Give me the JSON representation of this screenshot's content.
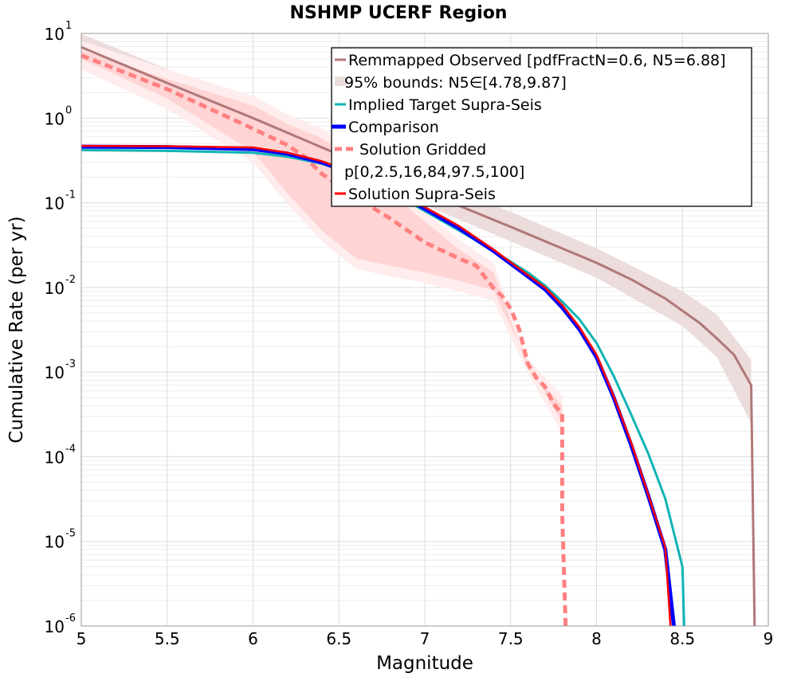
{
  "chart_data": {
    "type": "line",
    "title": "NSHMP UCERF Region",
    "xlabel": "Magnitude",
    "ylabel": "Cumulative Rate (per yr)",
    "xlim": [
      5,
      9
    ],
    "ylim": [
      1e-06,
      10
    ],
    "yscale": "log",
    "grid": true,
    "legend_position": "top-right",
    "x_ticks": [
      "5",
      "5.5",
      "6",
      "6.5",
      "7",
      "7.5",
      "8",
      "8.5",
      "9"
    ],
    "y_ticks": [
      {
        "base": "10",
        "exp": "-6"
      },
      {
        "base": "10",
        "exp": "-5"
      },
      {
        "base": "10",
        "exp": "-4"
      },
      {
        "base": "10",
        "exp": "-3"
      },
      {
        "base": "10",
        "exp": "-2"
      },
      {
        "base": "10",
        "exp": "-1"
      },
      {
        "base": "10",
        "exp": "0"
      },
      {
        "base": "10",
        "exp": "1"
      }
    ],
    "legend": [
      "Remmapped Observed [pdfFractN=0.6, N5=6.88]",
      "95% bounds: N5∈[4.78,9.87]",
      "Implied Target Supra-Seis",
      "Comparison",
      "Solution Gridded",
      "p[0,2.5,16,84,97.5,100]",
      "Solution Supra-Seis"
    ],
    "colors": {
      "observed": "#b07878",
      "observed_band": "#ecdcdc",
      "target": "#10b4b4",
      "comparison": "#0000ff",
      "gridded": "#ff8080",
      "gridded_band_outer": "#ffecec",
      "gridded_band_inner": "#ffd4d4",
      "supra": "#ff0000"
    },
    "series": [
      {
        "name": "Remmapped Observed [pdfFractN=0.6, N5=6.88]",
        "x": [
          5.0,
          5.5,
          6.0,
          6.5,
          7.0,
          7.5,
          8.0,
          8.2,
          8.4,
          8.6,
          8.7,
          8.8,
          8.9,
          8.92
        ],
        "y": [
          6.88,
          2.6,
          1.0,
          0.37,
          0.135,
          0.052,
          0.0195,
          0.0125,
          0.0074,
          0.0038,
          0.0025,
          0.0016,
          0.0007,
          1e-06
        ]
      },
      {
        "name": "95% bounds: N5∈[4.78,9.87]",
        "x": [
          5.0,
          5.5,
          6.0,
          6.5,
          7.0,
          7.5,
          8.0,
          8.5,
          8.7,
          8.9
        ],
        "y_low": [
          4.78,
          1.8,
          0.68,
          0.25,
          0.094,
          0.035,
          0.013,
          0.0035,
          0.0015,
          0.00025
        ],
        "y_high": [
          9.87,
          3.8,
          1.45,
          0.55,
          0.2,
          0.078,
          0.029,
          0.009,
          0.0048,
          0.0014
        ]
      },
      {
        "name": "Implied Target Supra-Seis",
        "x": [
          5.0,
          5.5,
          6.0,
          6.2,
          6.4,
          6.6,
          6.8,
          7.0,
          7.2,
          7.4,
          7.6,
          7.7,
          7.8,
          7.9,
          8.0,
          8.1,
          8.2,
          8.3,
          8.4,
          8.5,
          8.51
        ],
        "y": [
          0.42,
          0.41,
          0.39,
          0.35,
          0.29,
          0.21,
          0.135,
          0.08,
          0.047,
          0.027,
          0.015,
          0.0105,
          0.0068,
          0.0042,
          0.0022,
          0.0009,
          0.00032,
          0.00011,
          3.2e-05,
          5e-06,
          1e-06
        ]
      },
      {
        "name": "Comparison",
        "x": [
          5.0,
          5.5,
          6.0,
          6.2,
          6.4,
          6.6,
          6.8,
          7.0,
          7.2,
          7.4,
          7.6,
          7.7,
          7.8,
          7.9,
          8.0,
          8.1,
          8.2,
          8.3,
          8.4,
          8.45
        ],
        "y": [
          0.46,
          0.455,
          0.43,
          0.38,
          0.3,
          0.215,
          0.14,
          0.085,
          0.05,
          0.027,
          0.0135,
          0.0095,
          0.0058,
          0.0032,
          0.0015,
          0.0005,
          0.00014,
          3.5e-05,
          8e-06,
          1e-06
        ]
      },
      {
        "name": "Solution Gridded",
        "x": [
          5.0,
          5.5,
          6.0,
          6.1,
          6.2,
          6.3,
          6.4,
          6.5,
          6.6,
          6.8,
          7.0,
          7.2,
          7.3,
          7.4,
          7.45,
          7.5,
          7.55,
          7.6,
          7.65,
          7.7,
          7.75,
          7.8,
          7.8,
          7.82
        ],
        "y": [
          5.5,
          2.2,
          0.75,
          0.6,
          0.48,
          0.35,
          0.22,
          0.16,
          0.115,
          0.065,
          0.034,
          0.022,
          0.018,
          0.0098,
          0.0079,
          0.0056,
          0.0032,
          0.00125,
          0.00085,
          0.00067,
          0.00042,
          0.00032,
          2.1e-05,
          1e-06
        ]
      },
      {
        "name": "p[0,2.5,16,84,97.5,100]",
        "x": [
          5.0,
          5.5,
          6.0,
          6.2,
          6.4,
          6.6,
          6.8,
          7.0,
          7.2,
          7.4,
          7.6,
          7.8
        ],
        "y_low": [
          5.0,
          1.7,
          0.4,
          0.13,
          0.047,
          0.022,
          0.018,
          0.015,
          0.012,
          0.0092,
          0.0013,
          0.00025
        ],
        "y_high": [
          6.3,
          2.9,
          1.4,
          0.85,
          0.58,
          0.32,
          0.13,
          0.06,
          0.028,
          0.015,
          0.0011,
          0.0004
        ]
      },
      {
        "name": "Solution Supra-Seis",
        "x": [
          5.0,
          5.5,
          6.0,
          6.2,
          6.4,
          6.6,
          6.8,
          7.0,
          7.2,
          7.4,
          7.6,
          7.7,
          7.8,
          7.9,
          8.0,
          8.1,
          8.2,
          8.3,
          8.4,
          8.43
        ],
        "y": [
          0.47,
          0.465,
          0.45,
          0.39,
          0.31,
          0.22,
          0.145,
          0.089,
          0.053,
          0.028,
          0.014,
          0.01,
          0.0062,
          0.0034,
          0.0016,
          0.00052,
          0.00015,
          3.6e-05,
          8.5e-06,
          1e-06
        ]
      }
    ]
  }
}
